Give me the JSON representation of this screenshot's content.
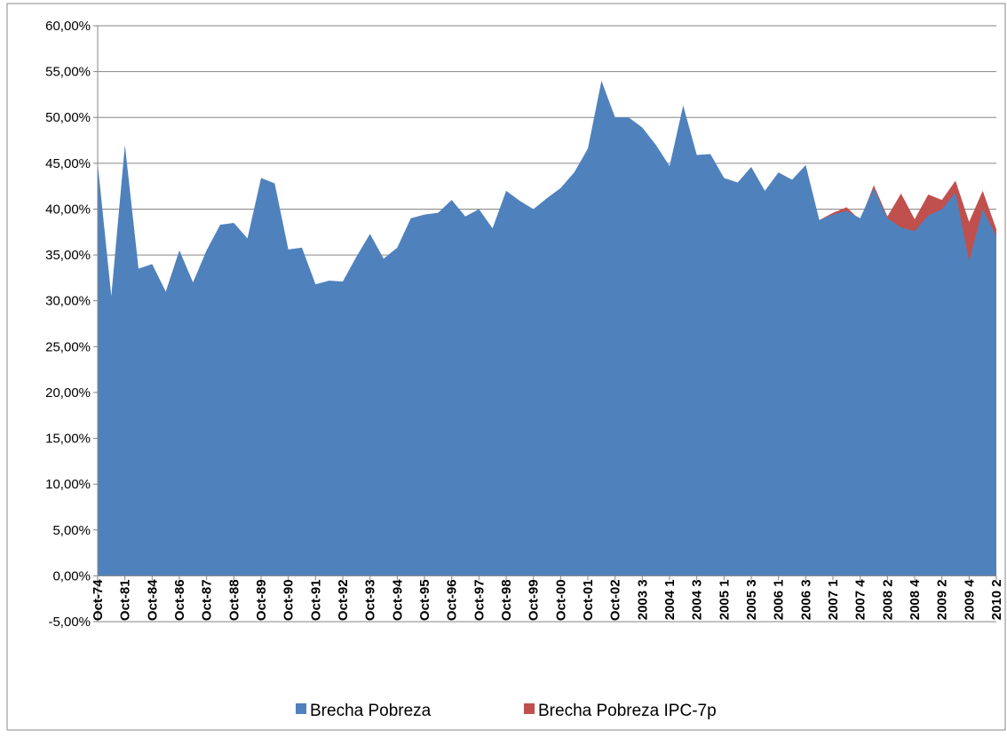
{
  "chart_data": {
    "type": "area",
    "categories": [
      "Oct-74",
      null,
      "Oct-81",
      null,
      "Oct-84",
      null,
      "Oct-86",
      null,
      "Oct-87",
      null,
      "Oct-88",
      null,
      "Oct-89",
      null,
      "Oct-90",
      null,
      "Oct-91",
      null,
      "Oct-92",
      null,
      "Oct-93",
      null,
      "Oct-94",
      null,
      "Oct-95",
      null,
      "Oct-96",
      null,
      "Oct-97",
      null,
      "Oct-98",
      null,
      "Oct-99",
      null,
      "Oct-00",
      null,
      "Oct-01",
      null,
      "Oct-02",
      null,
      "2003 3",
      null,
      "2004 1",
      null,
      "2004 3",
      null,
      "2005 1",
      null,
      "2005 3",
      null,
      "2006 1",
      null,
      "2006 3",
      null,
      "2007 1",
      null,
      "2007 4",
      null,
      "2008 2",
      null,
      "2008 4",
      null,
      "2009 2",
      null,
      "2009 4",
      null,
      "2010 2"
    ],
    "series": [
      {
        "name": "Brecha Pobreza",
        "color": "#4f81bd",
        "values": [
          45,
          30.5,
          47,
          33.5,
          34,
          31,
          35.5,
          32,
          35.5,
          38.3,
          38.5,
          36.8,
          43.4,
          42.8,
          35.6,
          35.8,
          31.8,
          32.2,
          32.1,
          34.8,
          37.3,
          34.6,
          35.8,
          39,
          39.4,
          39.6,
          41,
          39.2,
          40,
          37.9,
          42,
          40.9,
          40,
          41.2,
          42.3,
          44,
          46.6,
          54,
          50,
          50,
          48.9,
          47,
          44.7,
          51.3,
          45.9,
          46,
          43.4,
          42.9,
          44.6,
          42,
          44,
          43.2,
          44.8,
          38.8,
          39.4,
          39.8,
          39,
          42.3,
          39,
          38,
          37.6,
          39.3,
          40,
          41.8,
          34.3,
          40,
          37
        ]
      },
      {
        "name": "Brecha Pobreza IPC-7p",
        "color": "#c0504d",
        "values": [
          null,
          null,
          null,
          null,
          null,
          null,
          null,
          null,
          null,
          null,
          null,
          null,
          null,
          null,
          null,
          null,
          null,
          null,
          null,
          null,
          null,
          null,
          null,
          null,
          null,
          null,
          null,
          null,
          null,
          null,
          null,
          null,
          null,
          null,
          null,
          null,
          null,
          null,
          null,
          null,
          null,
          null,
          null,
          null,
          null,
          null,
          null,
          null,
          null,
          null,
          null,
          null,
          null,
          38.8,
          39.6,
          40.2,
          38.8,
          42.6,
          39.2,
          41.7,
          38.9,
          41.6,
          41,
          43.1,
          38.6,
          42,
          37.8
        ]
      }
    ],
    "ylim": [
      -5,
      60
    ],
    "yticks": [
      {
        "value": -5,
        "label": "-5,00%"
      },
      {
        "value": 0,
        "label": "0,00%"
      },
      {
        "value": 5,
        "label": "5,00%"
      },
      {
        "value": 10,
        "label": "10,00%"
      },
      {
        "value": 15,
        "label": "15,00%"
      },
      {
        "value": 20,
        "label": "20,00%"
      },
      {
        "value": 25,
        "label": "25,00%"
      },
      {
        "value": 30,
        "label": "30,00%"
      },
      {
        "value": 35,
        "label": "35,00%"
      },
      {
        "value": 40,
        "label": "40,00%"
      },
      {
        "value": 45,
        "label": "45,00%"
      },
      {
        "value": 50,
        "label": "50,00%"
      },
      {
        "value": 55,
        "label": "55,00%"
      },
      {
        "value": 60,
        "label": "60,00%"
      }
    ],
    "grid": true,
    "legend": "bottom"
  }
}
